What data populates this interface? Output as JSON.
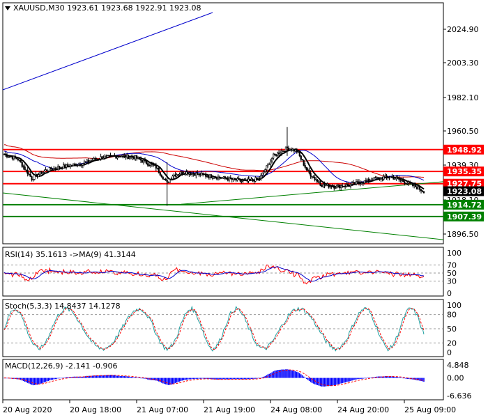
{
  "header": {
    "symbol": "XAUUSD,M30",
    "ohlc": "1923.61 1923.68 1922.91 1923.08",
    "menu_icon": "triangle-down-icon"
  },
  "price_panel": {
    "axis_labels": [
      "2024.90",
      "2003.30",
      "1982.10",
      "1960.50",
      "1939.30",
      "1918.10",
      "1896.50"
    ],
    "current_price": "1923.08",
    "levels": [
      {
        "price": 1948.92,
        "label": "1948.92",
        "color": "#ff0000"
      },
      {
        "price": 1935.35,
        "label": "1935.35",
        "color": "#ff0000"
      },
      {
        "price": 1927.75,
        "label": "1927.75",
        "color": "#ff0000"
      },
      {
        "price": 1914.72,
        "label": "1914.72",
        "color": "#008000"
      },
      {
        "price": 1907.39,
        "label": "1907.39",
        "color": "#008000"
      }
    ]
  },
  "rsi_panel": {
    "label": "RSI(14) 35.1613 ->MA(9) 41.3144",
    "axis_labels": [
      "100",
      "70",
      "50",
      "30",
      "0"
    ]
  },
  "stoch_panel": {
    "label": "Stoch(5,3,3) 14.8437 14.1278",
    "axis_labels": [
      "100",
      "80",
      "50",
      "20",
      "0"
    ]
  },
  "macd_panel": {
    "label": "MACD(12,26,9) -2.141 -0.906",
    "axis_labels": [
      "4.848",
      "0.00",
      "-6.636"
    ]
  },
  "time_axis": [
    "20 Aug 2020",
    "20 Aug 18:00",
    "21 Aug 07:00",
    "21 Aug 19:00",
    "24 Aug 08:00",
    "24 Aug 20:00",
    "25 Aug 09:00"
  ],
  "colors": {
    "candle": "#000000",
    "ma_fast": "#000000",
    "ma_mid": "#0000cc",
    "ma_slow": "#cc0000",
    "trend_blue": "#0000cc",
    "trend_green": "#008000",
    "rsi": "#ff0000",
    "rsi_ma": "#0000cc",
    "stoch_main": "#20a0a0",
    "stoch_signal": "#ff0000",
    "macd_hist": "#0000ff",
    "macd_signal": "#ff0000"
  }
}
